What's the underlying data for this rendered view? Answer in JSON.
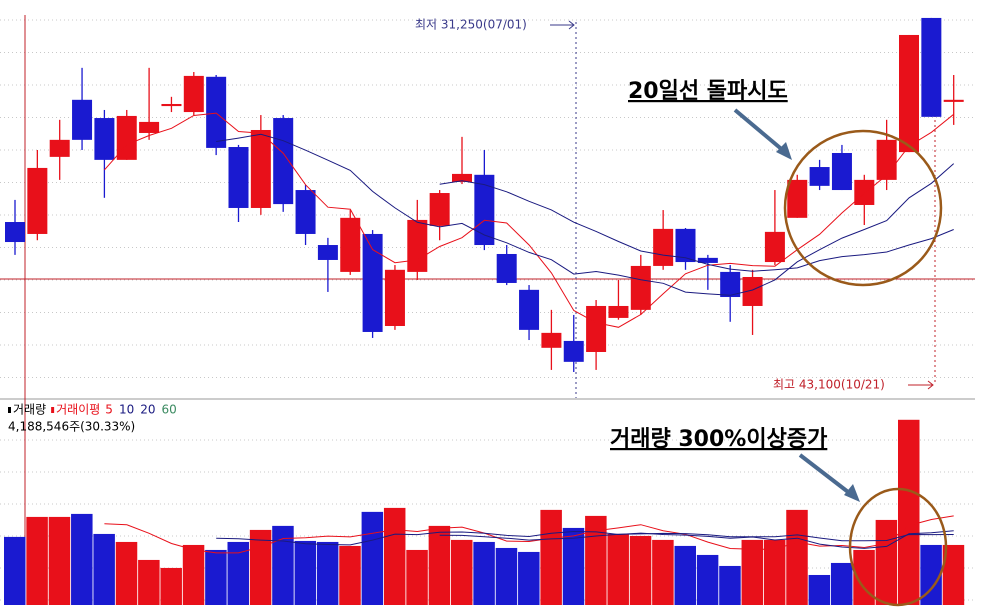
{
  "chart_data": {
    "type": "candlestick",
    "annotations": {
      "low_label": "최저 31,250(07/01)",
      "high_label": "최고 43,100(10/21)",
      "breakout_note": "20일선 돌파시도",
      "volume_note": "거래량 300%이상증가"
    },
    "up_color": "#e8101a",
    "down_color": "#1a1ad0",
    "ylim": [
      30380,
      43600
    ],
    "open": [
      36270,
      35870,
      38450,
      40360,
      39750,
      38350,
      39250,
      40150,
      39950,
      41130,
      38780,
      36740,
      39750,
      37340,
      35500,
      34600,
      35870,
      32790,
      34600,
      36140,
      37610,
      37850,
      35200,
      34000,
      32060,
      32290,
      31920,
      33060,
      33330,
      34800,
      36040,
      35070,
      34600,
      33460,
      34930,
      36410,
      38110,
      38580,
      36840,
      37680,
      38610,
      43100,
      40290
    ],
    "high": [
      37010,
      38680,
      39690,
      41430,
      40020,
      40020,
      41430,
      40460,
      41290,
      41190,
      38850,
      39850,
      39850,
      37510,
      35740,
      36670,
      36000,
      34830,
      37010,
      37340,
      39120,
      38680,
      35500,
      34160,
      33330,
      33160,
      33660,
      34330,
      35170,
      36670,
      36070,
      35170,
      34830,
      34670,
      37340,
      37850,
      38350,
      38850,
      37850,
      39690,
      42530,
      43100,
      41190
    ],
    "low": [
      35170,
      35660,
      37680,
      38680,
      37080,
      38350,
      39020,
      39950,
      39850,
      38510,
      36270,
      36510,
      36610,
      35500,
      33930,
      34500,
      32390,
      32660,
      34330,
      35660,
      37540,
      35330,
      34160,
      32320,
      31320,
      31250,
      31320,
      33000,
      33160,
      34670,
      34670,
      34000,
      32930,
      32490,
      34830,
      36410,
      37340,
      37340,
      36170,
      37340,
      38610,
      39790,
      39520
    ],
    "close": [
      35600,
      38080,
      39020,
      39020,
      38350,
      39820,
      39620,
      40220,
      41160,
      38750,
      36740,
      39350,
      36870,
      35870,
      35000,
      36410,
      32590,
      34670,
      36340,
      37240,
      37880,
      35500,
      34230,
      32660,
      32560,
      31590,
      33460,
      33460,
      34800,
      36040,
      34930,
      34900,
      33760,
      34430,
      35940,
      37680,
      37480,
      37340,
      37680,
      39020,
      42530,
      39790,
      40360
    ],
    "volume": {
      "legend": [
        "거래량",
        "거래이평"
      ],
      "ma_periods": [
        5,
        10,
        20,
        60
      ],
      "ma_colors": [
        "#e8101a",
        "#1a1a80",
        "#1a1a80",
        "#3a8a60"
      ],
      "last_label": "4,188,546주(30.33%)",
      "ylim": [
        0,
        4410000
      ],
      "values": [
        1540000,
        1992000,
        1992000,
        2060000,
        1607000,
        1426000,
        1019000,
        838000,
        1358000,
        1245000,
        1426000,
        1698000,
        1789000,
        1449000,
        1426000,
        1336000,
        2106000,
        2196000,
        1245000,
        1789000,
        1472000,
        1426000,
        1290000,
        1200000,
        2151000,
        1743000,
        2015000,
        1607000,
        1562000,
        1472000,
        1336000,
        1132000,
        883000,
        1472000,
        1472000,
        2151000,
        679000,
        951000,
        1245000,
        1924000,
        4188546,
        1358000,
        1358000
      ]
    }
  }
}
